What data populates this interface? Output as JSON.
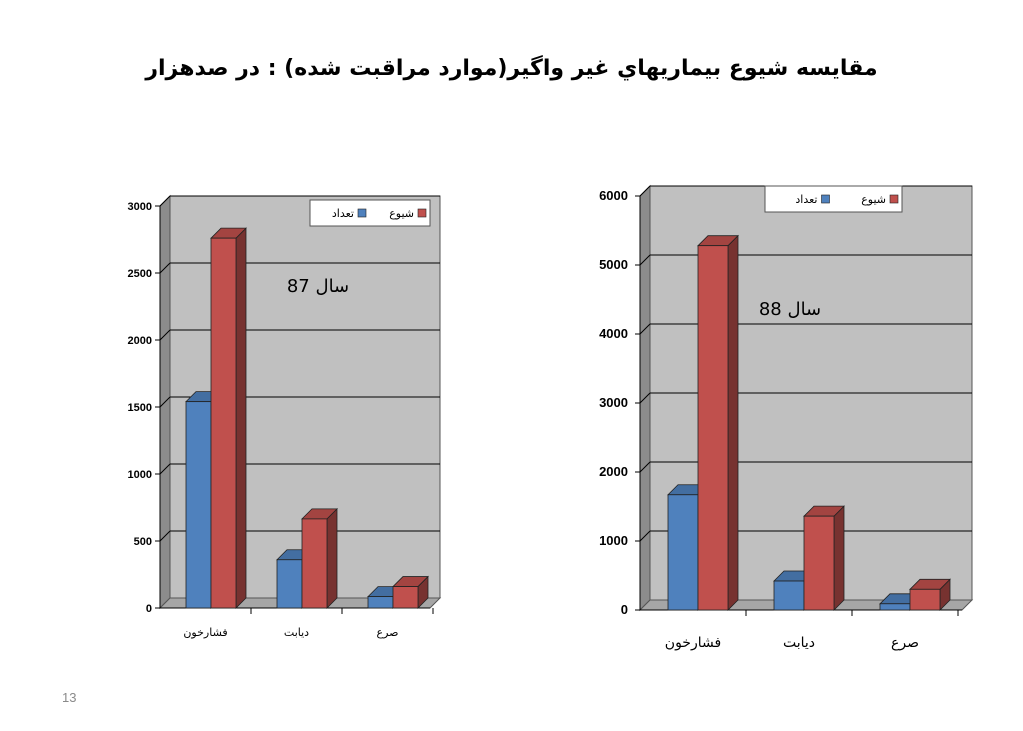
{
  "slide": {
    "title": "مقايسه شيوع بيماريهاي غير واگير(موارد مراقبت شده) : در صدهزار",
    "page_number": "13"
  },
  "colors": {
    "series_1": "#4F81BD",
    "series_2": "#C0504D",
    "plot_background": "#C0C0C0",
    "wall_side": "#8c8c8c",
    "floor": "#a6a6a6"
  },
  "chart_data": [
    {
      "type": "bar",
      "annotation": "سال 87",
      "categories": [
        "فشارخون",
        "ديابت",
        "صرع"
      ],
      "series": [
        {
          "name": "تعداد",
          "values": [
            1540,
            360,
            85
          ]
        },
        {
          "name": "شيوع",
          "values": [
            2760,
            665,
            160
          ]
        }
      ],
      "ylim": [
        0,
        3000
      ],
      "yticks": [
        0,
        500,
        1000,
        1500,
        2000,
        2500,
        3000
      ],
      "grid": true,
      "legend_position": "top-right"
    },
    {
      "type": "bar",
      "annotation": "سال 88",
      "categories": [
        "فشارخون",
        "ديابت",
        "صرع"
      ],
      "series": [
        {
          "name": "تعداد",
          "values": [
            1670,
            420,
            90
          ]
        },
        {
          "name": "شيوع",
          "values": [
            5280,
            1360,
            300
          ]
        }
      ],
      "ylim": [
        0,
        6000
      ],
      "yticks": [
        0,
        1000,
        2000,
        3000,
        4000,
        5000,
        6000
      ],
      "grid": true,
      "legend_position": "top-right"
    }
  ]
}
